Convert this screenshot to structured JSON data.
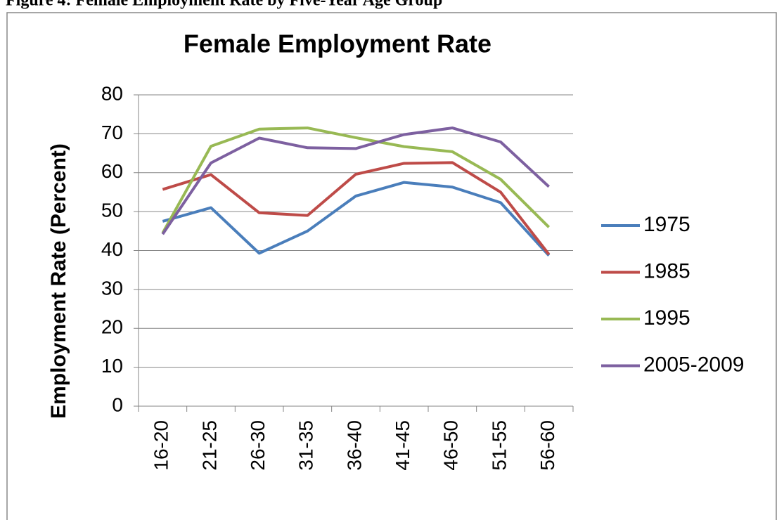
{
  "caption": "Figure 4: Female Employment Rate by Five-Year Age Group",
  "chart_data": {
    "type": "line",
    "title": "Female Employment Rate",
    "y_label": "Employment Rate (Percent)",
    "categories": [
      "16-20",
      "21-25",
      "26-30",
      "31-35",
      "36-40",
      "41-45",
      "46-50",
      "51-55",
      "56-60"
    ],
    "series": [
      {
        "name": "1975",
        "color": "#4a7ebb",
        "values": [
          47.5,
          51,
          39.3,
          45,
          54,
          57.5,
          56.3,
          52.3,
          38.7
        ]
      },
      {
        "name": "1985",
        "color": "#be4b48",
        "values": [
          55.7,
          59.5,
          49.7,
          49,
          59.6,
          62.4,
          62.6,
          55,
          39
        ]
      },
      {
        "name": "1995",
        "color": "#98b954",
        "values": [
          44.5,
          66.8,
          71.2,
          71.5,
          69,
          66.7,
          65.4,
          58.3,
          46
        ]
      },
      {
        "name": "2005-2009",
        "color": "#7d60a0",
        "values": [
          44.2,
          62.5,
          68.9,
          66.4,
          66.2,
          69.8,
          71.5,
          67.9,
          56.4
        ]
      }
    ],
    "ylim": [
      0,
      80
    ],
    "yticks": [
      0,
      10,
      20,
      30,
      40,
      50,
      60,
      70,
      80
    ],
    "grid": true,
    "legend": "right"
  }
}
